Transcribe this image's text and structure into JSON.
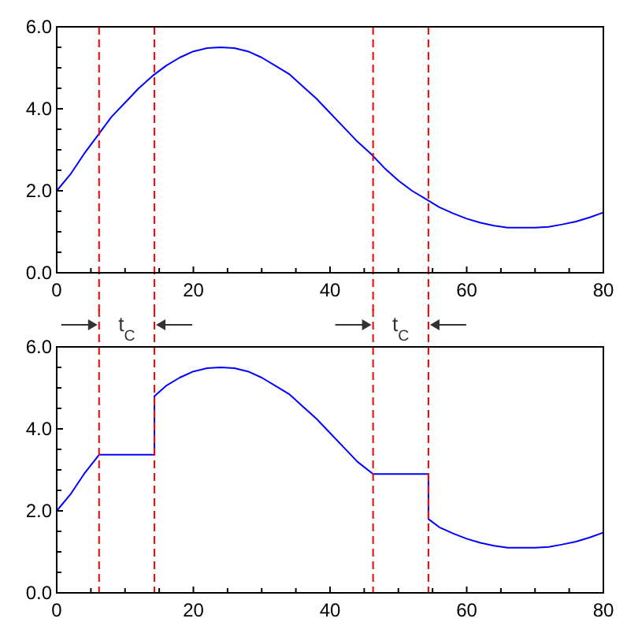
{
  "chart_data": [
    {
      "type": "line",
      "xlim": [
        0,
        80
      ],
      "ylim": [
        0,
        6
      ],
      "xticks": [
        0,
        {
          "value": 5,
          "label": null
        },
        {
          "value": 10,
          "label": null
        },
        {
          "value": 15,
          "label": null
        },
        20,
        {
          "value": 25,
          "label": null
        },
        {
          "value": 30,
          "label": null
        },
        {
          "value": 35,
          "label": null
        },
        40,
        {
          "value": 45,
          "label": null
        },
        {
          "value": 50,
          "label": null
        },
        {
          "value": 55,
          "label": null
        },
        60,
        {
          "value": 65,
          "label": null
        },
        {
          "value": 70,
          "label": null
        },
        {
          "value": 75,
          "label": null
        },
        80
      ],
      "yticks": [
        {
          "value": 0,
          "label": "0.0"
        },
        {
          "value": 0.5,
          "label": null
        },
        {
          "value": 1,
          "label": null
        },
        {
          "value": 1.5,
          "label": null
        },
        {
          "value": 2,
          "label": "2.0"
        },
        {
          "value": 2.5,
          "label": null
        },
        {
          "value": 3,
          "label": null
        },
        {
          "value": 3.5,
          "label": null
        },
        {
          "value": 4,
          "label": "4.0"
        },
        {
          "value": 4.5,
          "label": null
        },
        {
          "value": 5,
          "label": null
        },
        {
          "value": 5.5,
          "label": null
        },
        {
          "value": 6,
          "label": "6.0"
        }
      ],
      "grid": false,
      "marker": "none",
      "line_style": "solid",
      "series": [
        {
          "color": "#0000ff",
          "x": [
            0,
            2,
            4,
            6,
            8,
            10,
            12,
            14,
            16,
            18,
            20,
            22,
            24,
            26,
            28,
            30,
            32,
            34,
            36,
            38,
            40,
            42,
            44,
            46,
            48,
            50,
            52,
            54,
            56,
            58,
            60,
            62,
            64,
            66,
            68,
            70,
            72,
            74,
            76,
            78,
            80
          ],
          "values": [
            2.0,
            2.4,
            2.9,
            3.35,
            3.8,
            4.15,
            4.5,
            4.8,
            5.05,
            5.25,
            5.4,
            5.48,
            5.5,
            5.48,
            5.4,
            5.25,
            5.05,
            4.85,
            4.55,
            4.25,
            3.9,
            3.55,
            3.2,
            2.9,
            2.55,
            2.25,
            2.0,
            1.8,
            1.6,
            1.45,
            1.32,
            1.22,
            1.15,
            1.1,
            1.1,
            1.1,
            1.12,
            1.18,
            1.25,
            1.35,
            1.47
          ]
        }
      ],
      "ref_lines": [
        {
          "axis": "x",
          "value": 6.2,
          "color": "#ff0000",
          "line_style": "dashed"
        },
        {
          "axis": "x",
          "value": 14.3,
          "color": "#ff0000",
          "line_style": "dashed"
        },
        {
          "axis": "x",
          "value": 46.3,
          "color": "#ff0000",
          "line_style": "dashed"
        },
        {
          "axis": "x",
          "value": 54.4,
          "color": "#ff0000",
          "line_style": "dashed"
        }
      ]
    },
    {
      "type": "line",
      "xlim": [
        0,
        80
      ],
      "ylim": [
        0,
        6
      ],
      "xticks": [
        0,
        {
          "value": 5,
          "label": null
        },
        {
          "value": 10,
          "label": null
        },
        {
          "value": 15,
          "label": null
        },
        20,
        {
          "value": 25,
          "label": null
        },
        {
          "value": 30,
          "label": null
        },
        {
          "value": 35,
          "label": null
        },
        40,
        {
          "value": 45,
          "label": null
        },
        {
          "value": 50,
          "label": null
        },
        {
          "value": 55,
          "label": null
        },
        60,
        {
          "value": 65,
          "label": null
        },
        {
          "value": 70,
          "label": null
        },
        {
          "value": 75,
          "label": null
        },
        80
      ],
      "yticks": [
        {
          "value": 0,
          "label": "0.0"
        },
        {
          "value": 0.5,
          "label": null
        },
        {
          "value": 1,
          "label": null
        },
        {
          "value": 1.5,
          "label": null
        },
        {
          "value": 2,
          "label": "2.0"
        },
        {
          "value": 2.5,
          "label": null
        },
        {
          "value": 3,
          "label": null
        },
        {
          "value": 3.5,
          "label": null
        },
        {
          "value": 4,
          "label": "4.0"
        },
        {
          "value": 4.5,
          "label": null
        },
        {
          "value": 5,
          "label": null
        },
        {
          "value": 5.5,
          "label": null
        },
        {
          "value": 6,
          "label": "6.0"
        }
      ],
      "grid": false,
      "marker": "none",
      "line_style": "solid",
      "series": [
        {
          "color": "#0000ff",
          "x": [
            0,
            2,
            4,
            6.2,
            14.3,
            14.3,
            16,
            18,
            20,
            22,
            24,
            26,
            28,
            30,
            32,
            34,
            36,
            38,
            40,
            42,
            44,
            46.3,
            54.4,
            54.4,
            56,
            58,
            60,
            62,
            64,
            66,
            68,
            70,
            72,
            74,
            76,
            78,
            80
          ],
          "values": [
            2.0,
            2.4,
            2.9,
            3.37,
            3.37,
            4.8,
            5.05,
            5.25,
            5.4,
            5.48,
            5.5,
            5.48,
            5.4,
            5.25,
            5.05,
            4.85,
            4.55,
            4.25,
            3.9,
            3.55,
            3.2,
            2.9,
            2.9,
            1.8,
            1.6,
            1.45,
            1.32,
            1.22,
            1.15,
            1.1,
            1.1,
            1.1,
            1.12,
            1.18,
            1.25,
            1.35,
            1.47
          ]
        }
      ],
      "ref_lines": [
        {
          "axis": "x",
          "value": 6.2,
          "color": "#ff0000",
          "line_style": "dashed"
        },
        {
          "axis": "x",
          "value": 14.3,
          "color": "#ff0000",
          "line_style": "dashed"
        },
        {
          "axis": "x",
          "value": 46.3,
          "color": "#ff0000",
          "line_style": "dashed"
        },
        {
          "axis": "x",
          "value": 54.4,
          "color": "#ff0000",
          "line_style": "dashed"
        }
      ],
      "annotations": [
        "t$_{C}$",
        "t$_{C}$"
      ]
    }
  ]
}
